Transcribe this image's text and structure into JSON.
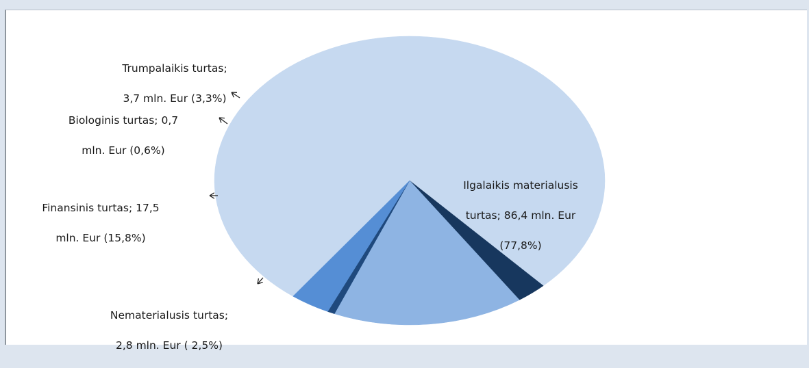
{
  "chart_data": {
    "type": "pie",
    "title": "",
    "slices": [
      {
        "name": "Ilgalaikis materialusis turtas",
        "value": 86.4,
        "percent": 77.8,
        "color": "#c6d9f0",
        "label_lines": [
          "Ilgalaikis materialusis",
          "turtas; 86,4 mln. Eur",
          "(77,8%)"
        ]
      },
      {
        "name": "Nematerialusis turtas",
        "value": 2.8,
        "percent": 2.5,
        "color": "#17375e",
        "label_lines": [
          "Nematerialusis turtas;",
          "2,8 mln. Eur ( 2,5%)"
        ]
      },
      {
        "name": "Finansinis turtas",
        "value": 17.5,
        "percent": 15.8,
        "color": "#8eb4e3",
        "label_lines": [
          "Finansinis turtas; 17,5",
          "mln. Eur (15,8%)"
        ]
      },
      {
        "name": "Biologinis turtas",
        "value": 0.7,
        "percent": 0.6,
        "color": "#1f497d",
        "label_lines": [
          "Biologinis turtas; 0,7",
          "mln. Eur (0,6%)"
        ]
      },
      {
        "name": "Trumpalaikis turtas",
        "value": 3.7,
        "percent": 3.3,
        "color": "#558ed5",
        "label_lines": [
          "Trumpalaikis turtas;",
          "3,7 mln. Eur (3,3%)"
        ]
      }
    ],
    "unit": "mln. Eur"
  }
}
